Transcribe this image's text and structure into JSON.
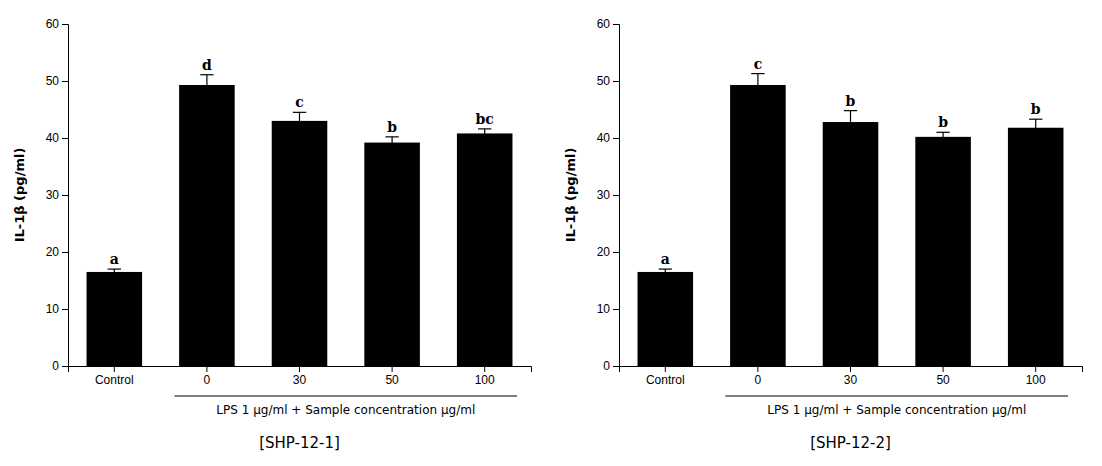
{
  "chart_data": [
    {
      "type": "bar",
      "title": "[SHP-12-1]",
      "categories": [
        "Control",
        "0",
        "30",
        "50",
        "100"
      ],
      "values": [
        16.5,
        49.3,
        43.0,
        39.2,
        40.8
      ],
      "errors": [
        0.5,
        1.8,
        1.5,
        1.0,
        0.8
      ],
      "annotations": [
        "a",
        "d",
        "c",
        "b",
        "bc"
      ],
      "ylabel": "IL-1β (pg/ml)",
      "xlabel": "LPS 1 μg/ml + Sample concentration μg/ml",
      "color": "#000000",
      "ylim": [
        0,
        60
      ],
      "yticks": [
        0,
        10,
        20,
        30,
        40,
        50,
        60
      ],
      "grid": false
    },
    {
      "type": "bar",
      "title": "[SHP-12-2]",
      "categories": [
        "Control",
        "0",
        "30",
        "50",
        "100"
      ],
      "values": [
        16.5,
        49.3,
        42.8,
        40.2,
        41.8
      ],
      "errors": [
        0.5,
        2.0,
        2.0,
        0.8,
        1.5
      ],
      "annotations": [
        "a",
        "c",
        "b",
        "b",
        "b"
      ],
      "ylabel": "IL-1β (pg/ml)",
      "xlabel": "LPS 1 μg/ml + Sample concentration μg/ml",
      "color": "#000000",
      "ylim": [
        0,
        60
      ],
      "yticks": [
        0,
        10,
        20,
        30,
        40,
        50,
        60
      ],
      "grid": false
    }
  ]
}
